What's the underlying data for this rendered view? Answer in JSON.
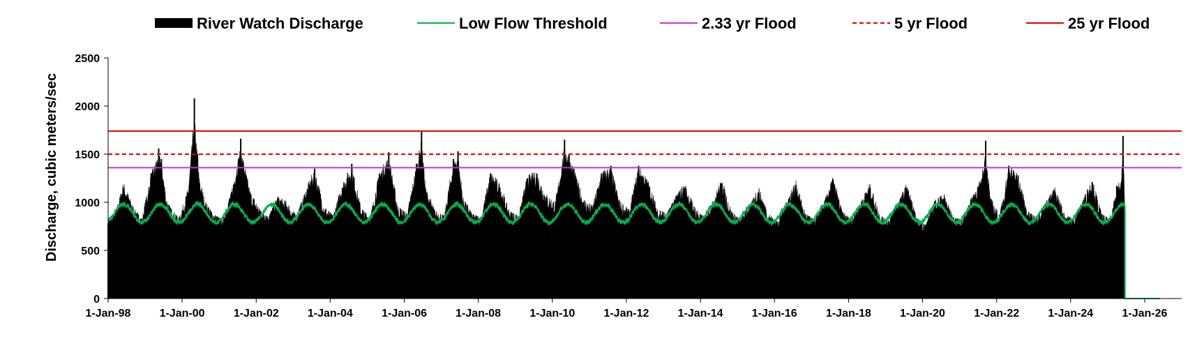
{
  "chart_data": {
    "type": "area",
    "title": "",
    "xlabel": "",
    "ylabel": "Discharge, cubic meters/sec",
    "ylim": [
      0,
      2500
    ],
    "yticks": [
      0,
      500,
      1000,
      1500,
      2000,
      2500
    ],
    "xlim": [
      "1998-01-01",
      "2027-01-01"
    ],
    "xticks": [
      {
        "date": "1998-01-01",
        "label": "1-Jan-98"
      },
      {
        "date": "2000-01-01",
        "label": "1-Jan-00"
      },
      {
        "date": "2002-01-01",
        "label": "1-Jan-02"
      },
      {
        "date": "2004-01-01",
        "label": "1-Jan-04"
      },
      {
        "date": "2006-01-01",
        "label": "1-Jan-06"
      },
      {
        "date": "2008-01-01",
        "label": "1-Jan-08"
      },
      {
        "date": "2010-01-01",
        "label": "1-Jan-10"
      },
      {
        "date": "2012-01-01",
        "label": "1-Jan-12"
      },
      {
        "date": "2014-01-01",
        "label": "1-Jan-14"
      },
      {
        "date": "2016-01-01",
        "label": "1-Jan-16"
      },
      {
        "date": "2018-01-01",
        "label": "1-Jan-18"
      },
      {
        "date": "2020-01-01",
        "label": "1-Jan-20"
      },
      {
        "date": "2022-01-01",
        "label": "1-Jan-22"
      },
      {
        "date": "2024-01-01",
        "label": "1-Jan-24"
      },
      {
        "date": "2026-01-01",
        "label": "1-Jan-26"
      }
    ],
    "grid": false,
    "legend_position": "top",
    "series": [
      {
        "name": "River Watch Discharge",
        "kind": "area",
        "color": "#000000",
        "x": [
          "1998-01-01",
          "1998-03-15",
          "1998-06-01",
          "1998-09-01",
          "1998-12-01",
          "1999-03-01",
          "1999-05-15",
          "1999-06-10",
          "1999-08-01",
          "1999-10-01",
          "1999-12-01",
          "2000-03-01",
          "2000-05-01",
          "2000-06-01",
          "2000-06-20",
          "2000-08-15",
          "2000-11-01",
          "2001-02-01",
          "2001-05-01",
          "2001-08-01",
          "2001-11-01",
          "2002-02-01",
          "2002-05-01",
          "2002-08-01",
          "2002-11-01",
          "2003-02-01",
          "2003-05-01",
          "2003-08-01",
          "2003-11-01",
          "2004-02-01",
          "2004-05-01",
          "2004-08-01",
          "2004-11-01",
          "2005-02-01",
          "2005-05-01",
          "2005-08-01",
          "2005-11-01",
          "2006-02-01",
          "2006-05-01",
          "2006-06-20",
          "2006-08-01",
          "2006-11-01",
          "2007-02-01",
          "2007-05-01",
          "2007-06-15",
          "2007-08-01",
          "2007-11-01",
          "2008-02-01",
          "2008-05-01",
          "2008-08-01",
          "2008-11-01",
          "2009-02-01",
          "2009-05-01",
          "2009-08-01",
          "2009-11-01",
          "2010-02-01",
          "2010-05-01",
          "2010-06-15",
          "2010-08-01",
          "2010-11-01",
          "2011-02-01",
          "2011-05-01",
          "2011-08-01",
          "2011-11-01",
          "2012-02-01",
          "2012-05-01",
          "2012-08-01",
          "2012-11-01",
          "2013-02-01",
          "2013-05-01",
          "2013-08-01",
          "2013-11-01",
          "2014-02-01",
          "2014-05-01",
          "2014-08-01",
          "2014-11-01",
          "2015-02-01",
          "2015-05-01",
          "2015-08-01",
          "2015-11-01",
          "2016-02-01",
          "2016-05-01",
          "2016-08-01",
          "2016-11-01",
          "2017-02-01",
          "2017-05-01",
          "2017-08-01",
          "2017-11-01",
          "2018-02-01",
          "2018-05-01",
          "2018-08-01",
          "2018-11-01",
          "2019-02-01",
          "2019-05-01",
          "2019-08-01",
          "2019-11-01",
          "2020-02-01",
          "2020-05-01",
          "2020-08-01",
          "2020-11-01",
          "2021-02-01",
          "2021-05-01",
          "2021-08-01",
          "2021-09-15",
          "2021-11-01",
          "2022-02-01",
          "2022-05-01",
          "2022-08-01",
          "2022-11-01",
          "2023-02-01",
          "2023-05-01",
          "2023-08-01",
          "2023-11-01",
          "2024-02-01",
          "2024-05-01",
          "2024-08-01",
          "2024-11-01",
          "2025-02-01",
          "2025-04-01",
          "2025-05-15",
          "2025-06-01",
          "2025-06-20"
        ],
        "values": [
          780,
          820,
          1150,
          900,
          760,
          1300,
          1560,
          1450,
          950,
          850,
          780,
          1100,
          2080,
          1500,
          1200,
          950,
          820,
          760,
          1050,
          1660,
          1100,
          880,
          780,
          1000,
          950,
          800,
          1050,
          1350,
          900,
          800,
          1150,
          1400,
          880,
          780,
          1300,
          1520,
          900,
          820,
          1400,
          1740,
          1100,
          850,
          800,
          1450,
          1530,
          1000,
          820,
          780,
          1300,
          1150,
          850,
          800,
          1250,
          1300,
          1050,
          950,
          1650,
          1500,
          1350,
          1000,
          900,
          1300,
          1380,
          950,
          860,
          1380,
          1200,
          880,
          820,
          1000,
          1150,
          900,
          780,
          950,
          1200,
          850,
          760,
          900,
          1100,
          820,
          740,
          950,
          1180,
          820,
          760,
          920,
          1240,
          840,
          760,
          940,
          1150,
          820,
          740,
          920,
          1150,
          780,
          700,
          960,
          1030,
          780,
          760,
          1000,
          1200,
          1640,
          1000,
          800,
          1380,
          1280,
          850,
          780,
          940,
          1100,
          820,
          760,
          960,
          1210,
          820,
          760,
          1170,
          1180,
          1690,
          900
        ]
      },
      {
        "name": "Low Flow Threshold",
        "kind": "seasonal",
        "color": "#00B050",
        "min": 790,
        "max": 980,
        "until": "2025-06-20",
        "after_value": 0
      },
      {
        "name": "2.33 yr Flood",
        "kind": "hline",
        "color": "#CC33CC",
        "dash": "solid",
        "value": 1360
      },
      {
        "name": "5 yr Flood",
        "kind": "hline",
        "color": "#E00000",
        "dash": "dashed",
        "value": 1500
      },
      {
        "name": "25 yr Flood",
        "kind": "hline",
        "color": "#E00000",
        "dash": "solid",
        "value": 1740
      }
    ]
  }
}
